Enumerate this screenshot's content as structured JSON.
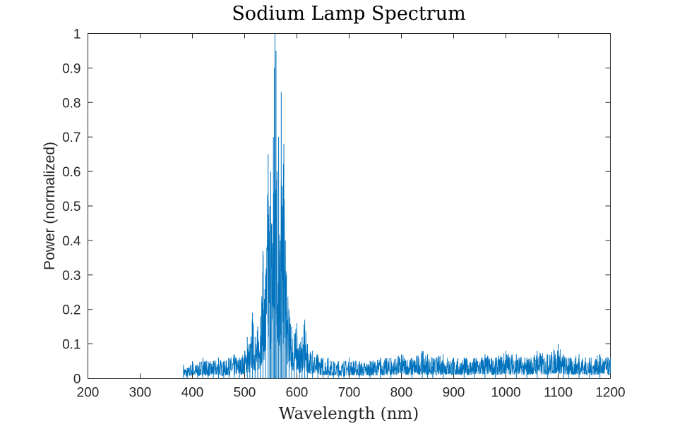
{
  "chart_data": {
    "type": "line",
    "title": "Sodium Lamp Spectrum",
    "xlabel": "Wavelength (nm)",
    "ylabel": "Power (normalized)",
    "xlim": [
      200,
      1200
    ],
    "ylim": [
      0,
      1
    ],
    "x_ticks": [
      "200",
      "300",
      "400",
      "500",
      "600",
      "700",
      "800",
      "900",
      "1000",
      "1100",
      "1200"
    ],
    "y_ticks": [
      "0",
      "0.1",
      "0.2",
      "0.3",
      "0.4",
      "0.5",
      "0.6",
      "0.7",
      "0.8",
      "0.9",
      "1"
    ],
    "grid": false,
    "series": [
      {
        "color": "#0072BD",
        "x": [
          383,
          390,
          400,
          410,
          420,
          430,
          440,
          450,
          460,
          470,
          480,
          490,
          500,
          505,
          510,
          515,
          520,
          525,
          530,
          535,
          540,
          545,
          548,
          550,
          552,
          555,
          557,
          558,
          560,
          562,
          565,
          568,
          570,
          572,
          575,
          578,
          580,
          585,
          590,
          595,
          600,
          605,
          610,
          615,
          620,
          630,
          640,
          650,
          660,
          670,
          680,
          690,
          700,
          720,
          740,
          760,
          780,
          800,
          820,
          840,
          850,
          860,
          880,
          900,
          920,
          940,
          960,
          980,
          1000,
          1020,
          1040,
          1060,
          1080,
          1100,
          1110,
          1120,
          1140,
          1160,
          1180,
          1200
        ],
        "y": [
          0.04,
          0.03,
          0.05,
          0.04,
          0.06,
          0.05,
          0.05,
          0.06,
          0.05,
          0.06,
          0.07,
          0.06,
          0.08,
          0.12,
          0.1,
          0.19,
          0.12,
          0.15,
          0.18,
          0.37,
          0.3,
          0.65,
          0.5,
          0.6,
          0.45,
          0.7,
          0.9,
          1.0,
          0.95,
          0.6,
          0.7,
          0.4,
          0.83,
          0.5,
          0.68,
          0.4,
          0.3,
          0.2,
          0.15,
          0.13,
          0.16,
          0.1,
          0.12,
          0.17,
          0.1,
          0.08,
          0.07,
          0.06,
          0.06,
          0.05,
          0.05,
          0.05,
          0.06,
          0.05,
          0.05,
          0.06,
          0.06,
          0.07,
          0.06,
          0.08,
          0.07,
          0.06,
          0.07,
          0.06,
          0.06,
          0.06,
          0.07,
          0.06,
          0.08,
          0.07,
          0.06,
          0.08,
          0.07,
          0.1,
          0.07,
          0.06,
          0.07,
          0.06,
          0.07,
          0.06
        ]
      }
    ]
  }
}
